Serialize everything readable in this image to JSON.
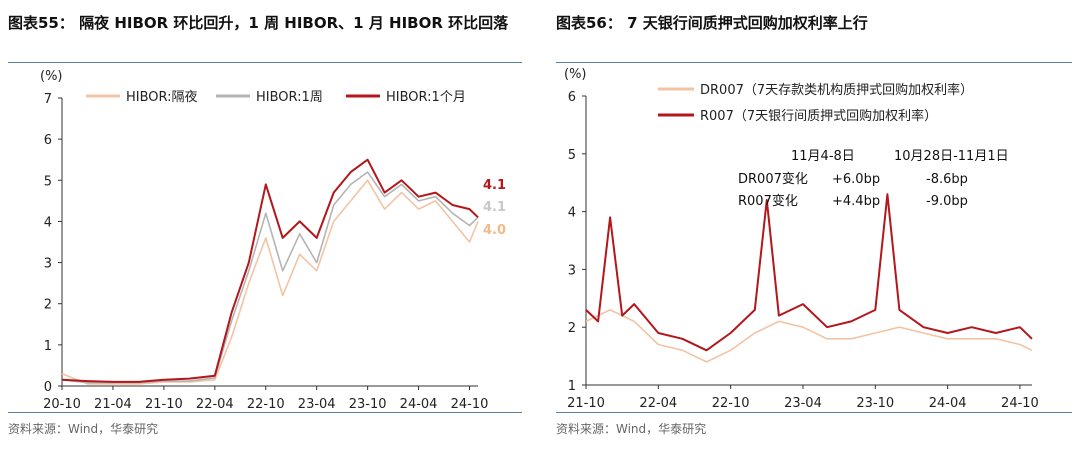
{
  "charts": [
    {
      "title": "图表55： 隔夜 HIBOR 环比回升，1 周 HIBOR、1 月 HIBOR 环比回落",
      "source": "资料来源：Wind，华泰研究",
      "unit": "(%)",
      "end_labels": [
        {
          "text": "4.1",
          "value": 4.1,
          "color": "#b3161b"
        },
        {
          "text": "4.1",
          "value": 4.1,
          "color": "#c8c8c8"
        },
        {
          "text": "4.0",
          "value": 4.0,
          "color": "#f2b98a"
        }
      ]
    },
    {
      "title": "图表56： 7 天银行间质押式回购加权利率上行",
      "source": "资料来源：Wind，华泰研究",
      "unit": "(%)",
      "annotation": {
        "periods": [
          "11月4-8日",
          "10月28日-11月1日"
        ],
        "rows": [
          {
            "label": "DR007变化",
            "values": [
              "+6.0bp",
              "-8.6bp"
            ]
          },
          {
            "label": "R007变化",
            "values": [
              "+4.4bp",
              "-9.0bp"
            ]
          }
        ]
      }
    }
  ],
  "chart_data": [
    {
      "type": "line",
      "ylim": [
        0,
        7
      ],
      "yticks": [
        0,
        1,
        2,
        3,
        4,
        5,
        6,
        7
      ],
      "x_domain": [
        "2020-10",
        "2024-11"
      ],
      "xticks": [
        "20-10",
        "21-04",
        "21-10",
        "22-04",
        "22-10",
        "23-04",
        "23-10",
        "24-04",
        "24-10"
      ],
      "legend_position": "top",
      "series": [
        {
          "name": "HIBOR:隔夜",
          "color": "#f2c4a4",
          "x": [
            "2020-10",
            "2021-01",
            "2021-04",
            "2021-07",
            "2021-10",
            "2022-01",
            "2022-04",
            "2022-06",
            "2022-08",
            "2022-10",
            "2022-12",
            "2023-02",
            "2023-04",
            "2023-06",
            "2023-08",
            "2023-10",
            "2023-12",
            "2024-02",
            "2024-04",
            "2024-06",
            "2024-08",
            "2024-10",
            "2024-11"
          ],
          "values": [
            0.3,
            0.05,
            0.05,
            0.05,
            0.1,
            0.1,
            0.15,
            1.2,
            2.5,
            3.6,
            2.2,
            3.2,
            2.8,
            4.0,
            4.5,
            5.0,
            4.3,
            4.7,
            4.3,
            4.5,
            4.0,
            3.5,
            4.0
          ]
        },
        {
          "name": "HIBOR:1周",
          "color": "#b4b4b4",
          "x": [
            "2020-10",
            "2021-01",
            "2021-04",
            "2021-07",
            "2021-10",
            "2022-01",
            "2022-04",
            "2022-06",
            "2022-08",
            "2022-10",
            "2022-12",
            "2023-02",
            "2023-04",
            "2023-06",
            "2023-08",
            "2023-10",
            "2023-12",
            "2024-02",
            "2024-04",
            "2024-06",
            "2024-08",
            "2024-10",
            "2024-11"
          ],
          "values": [
            0.15,
            0.08,
            0.08,
            0.08,
            0.12,
            0.12,
            0.2,
            1.6,
            2.8,
            4.2,
            2.8,
            3.7,
            3.0,
            4.4,
            4.9,
            5.2,
            4.6,
            4.9,
            4.5,
            4.6,
            4.2,
            3.9,
            4.1
          ]
        },
        {
          "name": "HIBOR:1个月",
          "color": "#b3161b",
          "x": [
            "2020-10",
            "2021-01",
            "2021-04",
            "2021-07",
            "2021-10",
            "2022-01",
            "2022-04",
            "2022-06",
            "2022-08",
            "2022-10",
            "2022-12",
            "2023-02",
            "2023-04",
            "2023-06",
            "2023-08",
            "2023-10",
            "2023-12",
            "2024-02",
            "2024-04",
            "2024-06",
            "2024-08",
            "2024-10",
            "2024-11"
          ],
          "values": [
            0.15,
            0.12,
            0.1,
            0.1,
            0.15,
            0.18,
            0.25,
            1.8,
            3.0,
            4.9,
            3.6,
            4.0,
            3.6,
            4.7,
            5.2,
            5.5,
            4.7,
            5.0,
            4.6,
            4.7,
            4.4,
            4.3,
            4.1
          ]
        }
      ]
    },
    {
      "type": "line",
      "ylim": [
        1,
        6
      ],
      "yticks": [
        1,
        2,
        3,
        4,
        5,
        6
      ],
      "x_domain": [
        "2021-10",
        "2024-11"
      ],
      "xticks": [
        "21-10",
        "22-04",
        "22-10",
        "23-04",
        "23-10",
        "24-04",
        "24-10"
      ],
      "legend_position": "top-left",
      "series": [
        {
          "name": "DR007（7天存款类机构质押式回购加权利率）",
          "color": "#f2c4a4",
          "x": [
            "2021-10",
            "2021-12",
            "2022-02",
            "2022-04",
            "2022-06",
            "2022-08",
            "2022-10",
            "2022-12",
            "2023-02",
            "2023-04",
            "2023-06",
            "2023-08",
            "2023-10",
            "2023-12",
            "2024-02",
            "2024-04",
            "2024-06",
            "2024-08",
            "2024-10",
            "2024-11"
          ],
          "values": [
            2.1,
            2.3,
            2.1,
            1.7,
            1.6,
            1.4,
            1.6,
            1.9,
            2.1,
            2.0,
            1.8,
            1.8,
            1.9,
            2.0,
            1.9,
            1.8,
            1.8,
            1.8,
            1.7,
            1.6
          ]
        },
        {
          "name": "R007（7天银行间质押式回购加权利率）",
          "color": "#b3161b",
          "x": [
            "2021-10",
            "2021-11",
            "2021-12",
            "2022-01",
            "2022-02",
            "2022-04",
            "2022-06",
            "2022-08",
            "2022-10",
            "2022-12",
            "2023-01",
            "2023-02",
            "2023-04",
            "2023-06",
            "2023-08",
            "2023-10",
            "2023-11",
            "2023-12",
            "2024-02",
            "2024-04",
            "2024-06",
            "2024-08",
            "2024-10",
            "2024-11"
          ],
          "values": [
            2.3,
            2.1,
            3.9,
            2.2,
            2.4,
            1.9,
            1.8,
            1.6,
            1.9,
            2.3,
            4.2,
            2.2,
            2.4,
            2.0,
            2.1,
            2.3,
            4.3,
            2.3,
            2.0,
            1.9,
            2.0,
            1.9,
            2.0,
            1.8
          ]
        }
      ]
    }
  ]
}
